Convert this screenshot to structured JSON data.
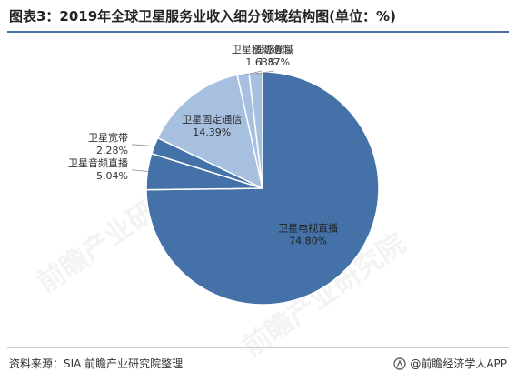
{
  "title": "图表3：2019年全球卫星服务业收入细分领域结构图(单位：%)",
  "source": "资料来源：SIA 前瞻产业研究院整理",
  "brand": "@前瞻经济学人APP",
  "watermark": "前瞻产业研究院",
  "colors": {
    "dark_slice": "#4472a8",
    "light_slice": "#a7c0e0",
    "slice_border": "#ffffff",
    "title_rule": "#4a6fa5"
  },
  "chart_data": {
    "type": "pie",
    "title": "",
    "start_angle_deg": 0,
    "direction": "clockwise",
    "slices": [
      {
        "label": "卫星电视直播",
        "value": 74.8,
        "value_text": "74.80%",
        "color": "#4472a8",
        "label_position": "inside"
      },
      {
        "label": "卫星音频直播",
        "value": 5.04,
        "value_text": "5.04%",
        "color": "#4472a8",
        "label_position": "outside-left"
      },
      {
        "label": "卫星宽带",
        "value": 2.28,
        "value_text": "2.28%",
        "color": "#4472a8",
        "label_position": "outside-left"
      },
      {
        "label": "卫星固定通信",
        "value": 14.39,
        "value_text": "14.39%",
        "color": "#a7c0e0",
        "label_position": "inside"
      },
      {
        "label": "卫星移动通信",
        "value": 1.63,
        "value_text": "1.63%",
        "color": "#a7c0e0",
        "label_position": "outside-top"
      },
      {
        "label": "遥感领域",
        "value": 1.87,
        "value_text": "1.87%",
        "color": "#a7c0e0",
        "label_position": "outside-top"
      }
    ]
  }
}
